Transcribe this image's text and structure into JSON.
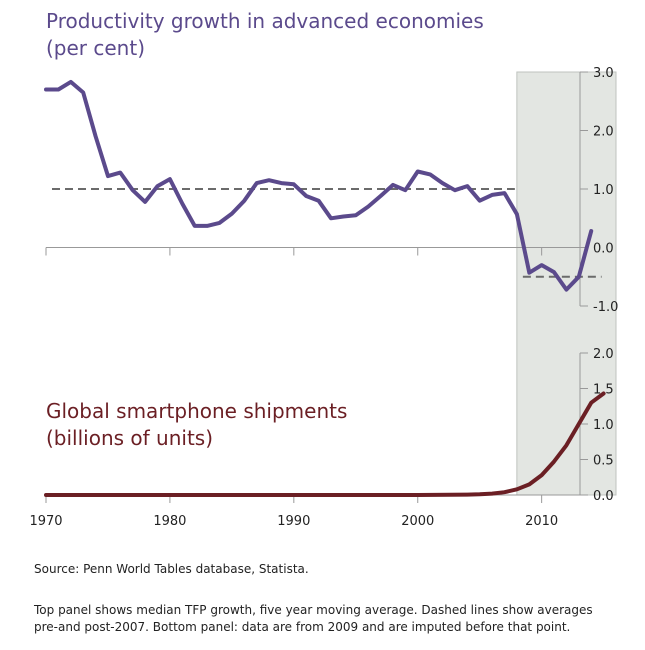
{
  "chart_data": [
    {
      "type": "line",
      "title_lines": [
        "Productivity growth in advanced economies",
        "(per cent)"
      ],
      "color": "#5b4a8c",
      "ylim": [
        -1.0,
        3.0
      ],
      "yticks": [
        "3.0",
        "2.0",
        "1.0",
        "0.0",
        "-1.0"
      ],
      "ytick_values": [
        3.0,
        2.0,
        1.0,
        0.0,
        -1.0
      ],
      "xlim": [
        1970,
        2016
      ],
      "shaded_region": [
        2008,
        2016
      ],
      "averages": [
        {
          "from": 1970,
          "to": 2008,
          "value": 1.0
        },
        {
          "from": 2008,
          "to": 2015,
          "value": -0.5
        }
      ],
      "x": [
        1970,
        1971,
        1972,
        1973,
        1974,
        1975,
        1976,
        1977,
        1978,
        1979,
        1980,
        1981,
        1982,
        1983,
        1984,
        1985,
        1986,
        1987,
        1988,
        1989,
        1990,
        1991,
        1992,
        1993,
        1994,
        1995,
        1996,
        1997,
        1998,
        1999,
        2000,
        2001,
        2002,
        2003,
        2004,
        2005,
        2006,
        2007,
        2008,
        2009,
        2010,
        2011,
        2012,
        2013,
        2014
      ],
      "values": [
        2.7,
        2.7,
        2.83,
        2.65,
        1.9,
        1.22,
        1.28,
        0.98,
        0.78,
        1.05,
        1.17,
        0.75,
        0.37,
        0.37,
        0.42,
        0.58,
        0.8,
        1.1,
        1.15,
        1.1,
        1.08,
        0.88,
        0.8,
        0.5,
        0.53,
        0.55,
        0.7,
        0.88,
        1.07,
        0.98,
        1.3,
        1.25,
        1.1,
        0.98,
        1.05,
        0.8,
        0.9,
        0.93,
        0.57,
        -0.43,
        -0.3,
        -0.42,
        -0.72,
        -0.5,
        0.28
      ]
    },
    {
      "type": "line",
      "title_lines": [
        "Global smartphone shipments",
        "(billions of units)"
      ],
      "color": "#6b1f24",
      "ylim": [
        0.0,
        2.0
      ],
      "yticks": [
        "2.0",
        "1.5",
        "1.0",
        "0.5",
        "0.0"
      ],
      "ytick_values": [
        2.0,
        1.5,
        1.0,
        0.5,
        0.0
      ],
      "xlim": [
        1970,
        2016
      ],
      "xticks": [
        "1970",
        "1980",
        "1990",
        "2000",
        "2010"
      ],
      "xtick_values": [
        1970,
        1980,
        1990,
        2000,
        2010
      ],
      "x": [
        1970,
        2000,
        2004,
        2005,
        2006,
        2007,
        2008,
        2009,
        2010,
        2011,
        2012,
        2013,
        2014,
        2015
      ],
      "values": [
        0.0,
        0.0,
        0.005,
        0.01,
        0.02,
        0.04,
        0.08,
        0.15,
        0.28,
        0.47,
        0.7,
        1.0,
        1.3,
        1.43
      ]
    }
  ],
  "footer": {
    "source": "Source:  Penn World Tables database, Statista.",
    "note_line1": "Top panel shows median TFP growth, five year moving average.  Dashed lines show averages",
    "note_line2": "pre-and post-2007.  Bottom panel:  data are from 2009 and are imputed before that point."
  }
}
